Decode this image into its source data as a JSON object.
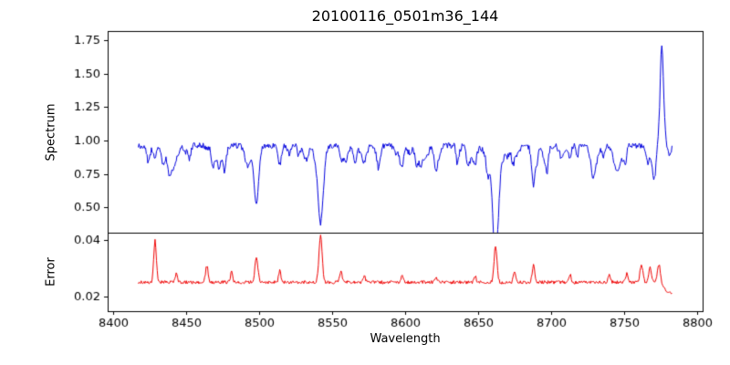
{
  "figure": {
    "title": "20100116_0501m36_144",
    "xlabel": "Wavelength",
    "ylabel_top": "Spectrum",
    "ylabel_bottom": "Error",
    "background_color": "#ffffff",
    "axis_color": "#000000"
  },
  "chart_data": {
    "type": "line",
    "title": "20100116_0501m36_144",
    "xlabel": "Wavelength",
    "grid": false,
    "legend": "none",
    "xlim": [
      8396,
      8804
    ],
    "x_ticks": [
      8400,
      8450,
      8500,
      8550,
      8600,
      8650,
      8700,
      8750,
      8800
    ],
    "panels": [
      {
        "ylabel": "Spectrum",
        "ylim": [
          0.31,
          1.82
        ],
        "y_ticks": [
          0.5,
          0.75,
          1.0,
          1.25,
          1.5,
          1.75
        ],
        "series_key": "spectrum"
      },
      {
        "ylabel": "Error",
        "ylim": [
          0.0147,
          0.0427
        ],
        "y_ticks": [
          0.02,
          0.04
        ],
        "series_key": "error"
      }
    ],
    "spectrum": {
      "name": "spectrum",
      "color": "#0000dd",
      "x_min": 8417,
      "x_max": 8783,
      "step": 0.5,
      "seed": 20100116,
      "continuum": 0.962,
      "noise": 0.022,
      "small_line_count": 70,
      "small_line_depth": [
        0.02,
        0.13
      ],
      "small_line_width": [
        0.6,
        2.0
      ],
      "tail_shift": {
        "center": 8773.5,
        "amount": 0.09,
        "width": 1.2
      },
      "features": [
        {
          "center": 8424.0,
          "depth": -0.13,
          "width": 1.0
        },
        {
          "center": 8434.0,
          "depth": -0.09,
          "width": 0.9
        },
        {
          "center": 8452.0,
          "depth": -0.1,
          "width": 0.9
        },
        {
          "center": 8468.0,
          "depth": -0.15,
          "width": 1.1
        },
        {
          "center": 8476.0,
          "depth": -0.08,
          "width": 0.9
        },
        {
          "center": 8498.0,
          "depth": -0.44,
          "width": 1.6
        },
        {
          "center": 8514.0,
          "depth": -0.15,
          "width": 1.0
        },
        {
          "center": 8527.0,
          "depth": -0.08,
          "width": 0.9
        },
        {
          "center": 8542.0,
          "depth": -0.58,
          "width": 1.9
        },
        {
          "center": 8556.0,
          "depth": -0.09,
          "width": 0.9
        },
        {
          "center": 8582.0,
          "depth": -0.1,
          "width": 0.9
        },
        {
          "center": 8598.0,
          "depth": -0.11,
          "width": 0.9
        },
        {
          "center": 8611.0,
          "depth": -0.07,
          "width": 0.9
        },
        {
          "center": 8621.0,
          "depth": -0.09,
          "width": 0.9
        },
        {
          "center": 8648.0,
          "depth": -0.08,
          "width": 0.9
        },
        {
          "center": 8662.0,
          "depth": -0.56,
          "width": 1.8
        },
        {
          "center": 8674.0,
          "depth": -0.12,
          "width": 1.0
        },
        {
          "center": 8688.0,
          "depth": -0.29,
          "width": 1.3
        },
        {
          "center": 8713.0,
          "depth": -0.1,
          "width": 0.9
        },
        {
          "center": 8736.0,
          "depth": -0.09,
          "width": 0.9
        },
        {
          "center": 8751.0,
          "depth": -0.11,
          "width": 0.9
        },
        {
          "center": 8770.5,
          "depth": -0.22,
          "width": 1.2
        },
        {
          "center": 8776.0,
          "depth": 0.68,
          "width": 1.1
        }
      ]
    },
    "error": {
      "name": "error",
      "color": "#ee0000",
      "x_min": 8417,
      "x_max": 8783,
      "step": 0.5,
      "seed": 144,
      "baseline": 0.025,
      "noise": 0.0006,
      "tail_shift": {
        "center": 8777.5,
        "amount": -0.0038,
        "width": 1.0
      },
      "features": [
        {
          "center": 8428.5,
          "height": 0.015,
          "width": 0.9
        },
        {
          "center": 8443.0,
          "height": 0.003,
          "width": 0.8
        },
        {
          "center": 8464.0,
          "height": 0.006,
          "width": 0.9
        },
        {
          "center": 8481.0,
          "height": 0.0035,
          "width": 0.8
        },
        {
          "center": 8498.0,
          "height": 0.009,
          "width": 1.0
        },
        {
          "center": 8514.0,
          "height": 0.004,
          "width": 0.8
        },
        {
          "center": 8542.0,
          "height": 0.0165,
          "width": 1.1
        },
        {
          "center": 8556.0,
          "height": 0.004,
          "width": 0.8
        },
        {
          "center": 8572.0,
          "height": 0.002,
          "width": 0.8
        },
        {
          "center": 8598.0,
          "height": 0.0025,
          "width": 0.8
        },
        {
          "center": 8621.0,
          "height": 0.002,
          "width": 0.8
        },
        {
          "center": 8648.0,
          "height": 0.002,
          "width": 0.8
        },
        {
          "center": 8662.0,
          "height": 0.013,
          "width": 1.0
        },
        {
          "center": 8675.0,
          "height": 0.0035,
          "width": 0.8
        },
        {
          "center": 8688.0,
          "height": 0.006,
          "width": 0.9
        },
        {
          "center": 8713.0,
          "height": 0.003,
          "width": 0.8
        },
        {
          "center": 8740.0,
          "height": 0.0025,
          "width": 0.8
        },
        {
          "center": 8752.0,
          "height": 0.003,
          "width": 0.8
        },
        {
          "center": 8762.0,
          "height": 0.006,
          "width": 1.0
        },
        {
          "center": 8768.0,
          "height": 0.005,
          "width": 0.9
        },
        {
          "center": 8774.0,
          "height": 0.0065,
          "width": 1.0
        }
      ]
    }
  }
}
